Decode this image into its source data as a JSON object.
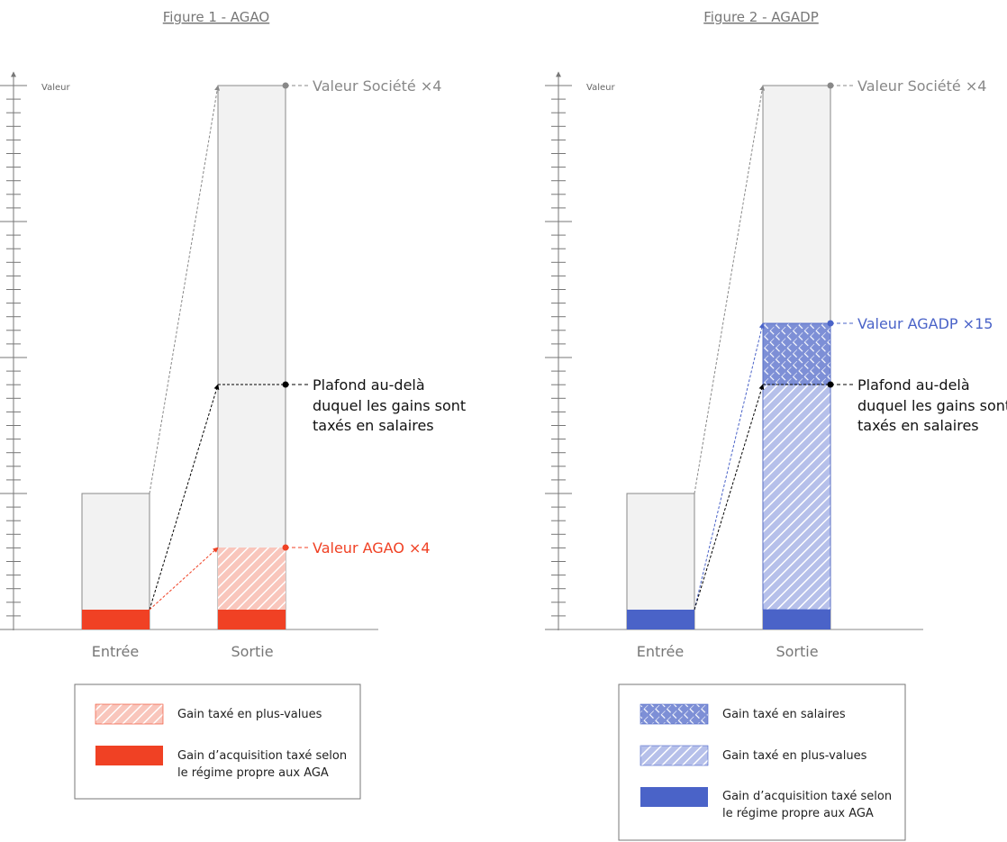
{
  "colors": {
    "red": "#f04124",
    "blue": "#4a63c8",
    "grey": "#888888",
    "bar": "#f2f2f2"
  },
  "fig1": {
    "title": "Figure 1 - AGAO",
    "axis_label": "Valeur",
    "categories": [
      "Entrée",
      "Sortie"
    ],
    "label_company": "Valeur Société ×4",
    "label_ceiling": [
      "Plafond au-delà",
      "duquel les gains sont",
      "taxés en salaires"
    ],
    "label_value": "Valeur AGAO ×4",
    "legend": [
      {
        "lines": [
          "Gain taxé en plus-values"
        ]
      },
      {
        "lines": [
          "Gain d’acquisition taxé selon",
          "le régime propre aux AGA"
        ]
      }
    ]
  },
  "fig2": {
    "title": "Figure 2 - AGADP",
    "axis_label": "Valeur",
    "categories": [
      "Entrée",
      "Sortie"
    ],
    "label_company": "Valeur Société ×4",
    "label_value": "Valeur AGADP ×15",
    "label_ceiling": [
      "Plafond au-delà",
      "duquel les gains sont",
      "taxés en salaires"
    ],
    "legend": [
      {
        "lines": [
          "Gain taxé en salaires"
        ]
      },
      {
        "lines": [
          "Gain taxé en plus-values"
        ]
      },
      {
        "lines": [
          "Gain d’acquisition taxé selon",
          "le régime propre aux AGA"
        ]
      }
    ]
  }
}
